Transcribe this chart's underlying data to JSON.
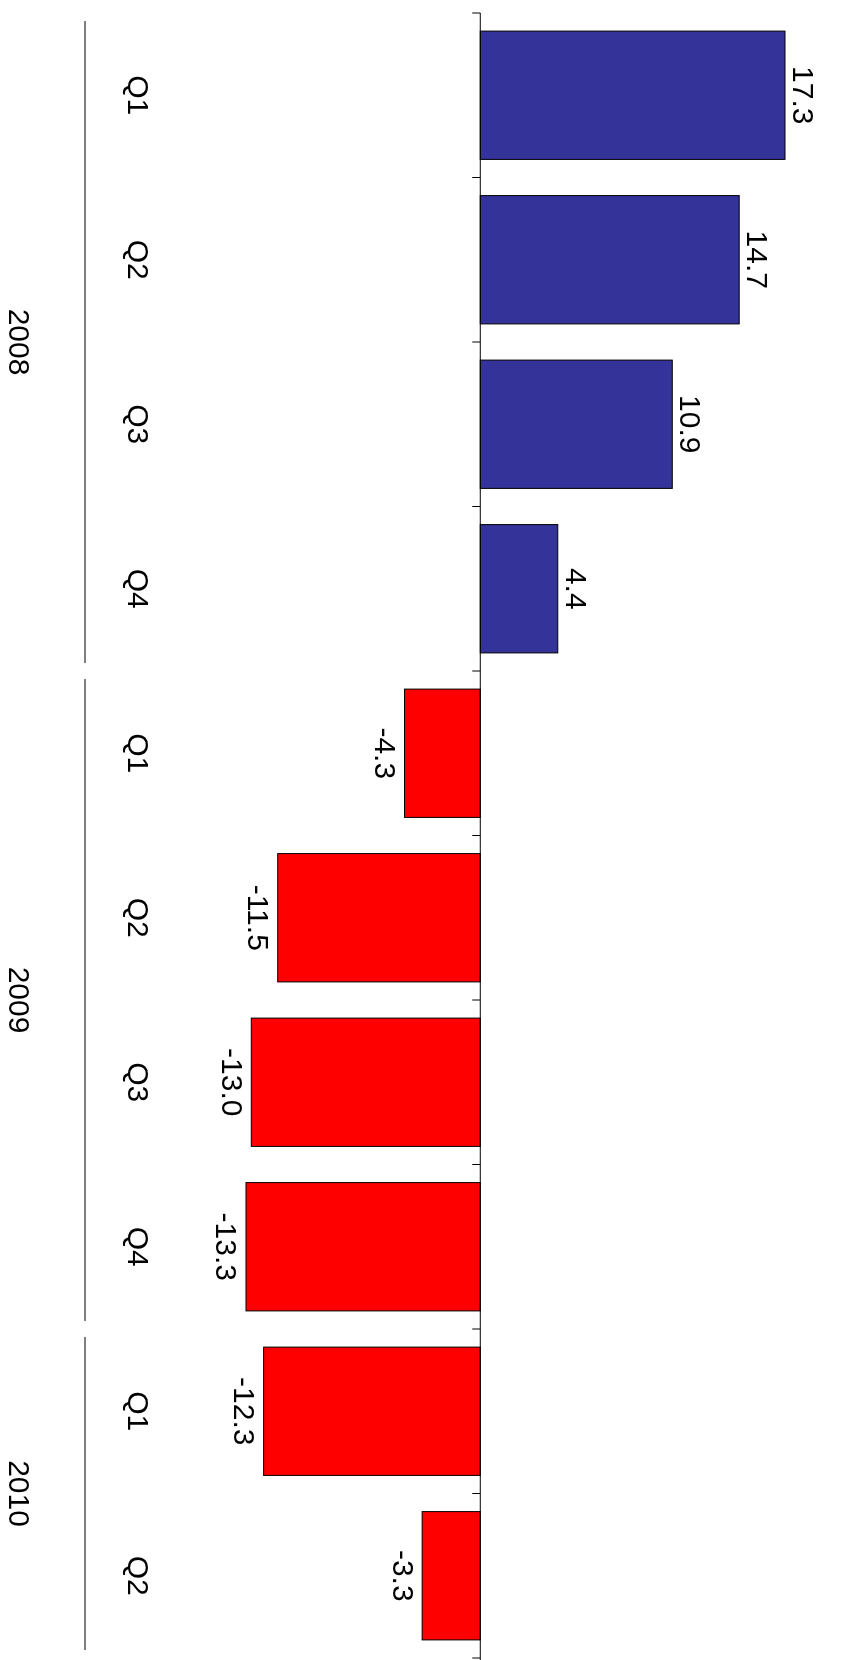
{
  "chart_data": {
    "type": "bar",
    "orientation": "horizontal",
    "categories": [
      "Q1",
      "Q2",
      "Q3",
      "Q4",
      "Q1",
      "Q2",
      "Q3",
      "Q4",
      "Q1",
      "Q2"
    ],
    "values": [
      17.3,
      14.7,
      10.9,
      4.4,
      -4.3,
      -11.5,
      -13.0,
      -13.3,
      -12.3,
      -3.3
    ],
    "value_labels": [
      "17.3",
      "14.7",
      "10.9",
      "4.4",
      "-4.3",
      "-11.5",
      "-13.0",
      "-13.3",
      "-12.3",
      "-3.3"
    ],
    "colors": [
      "#333399",
      "#333399",
      "#333399",
      "#333399",
      "#ff0000",
      "#ff0000",
      "#ff0000",
      "#ff0000",
      "#ff0000",
      "#ff0000"
    ],
    "annotations": [
      "2008",
      "2009",
      "2010"
    ]
  }
}
